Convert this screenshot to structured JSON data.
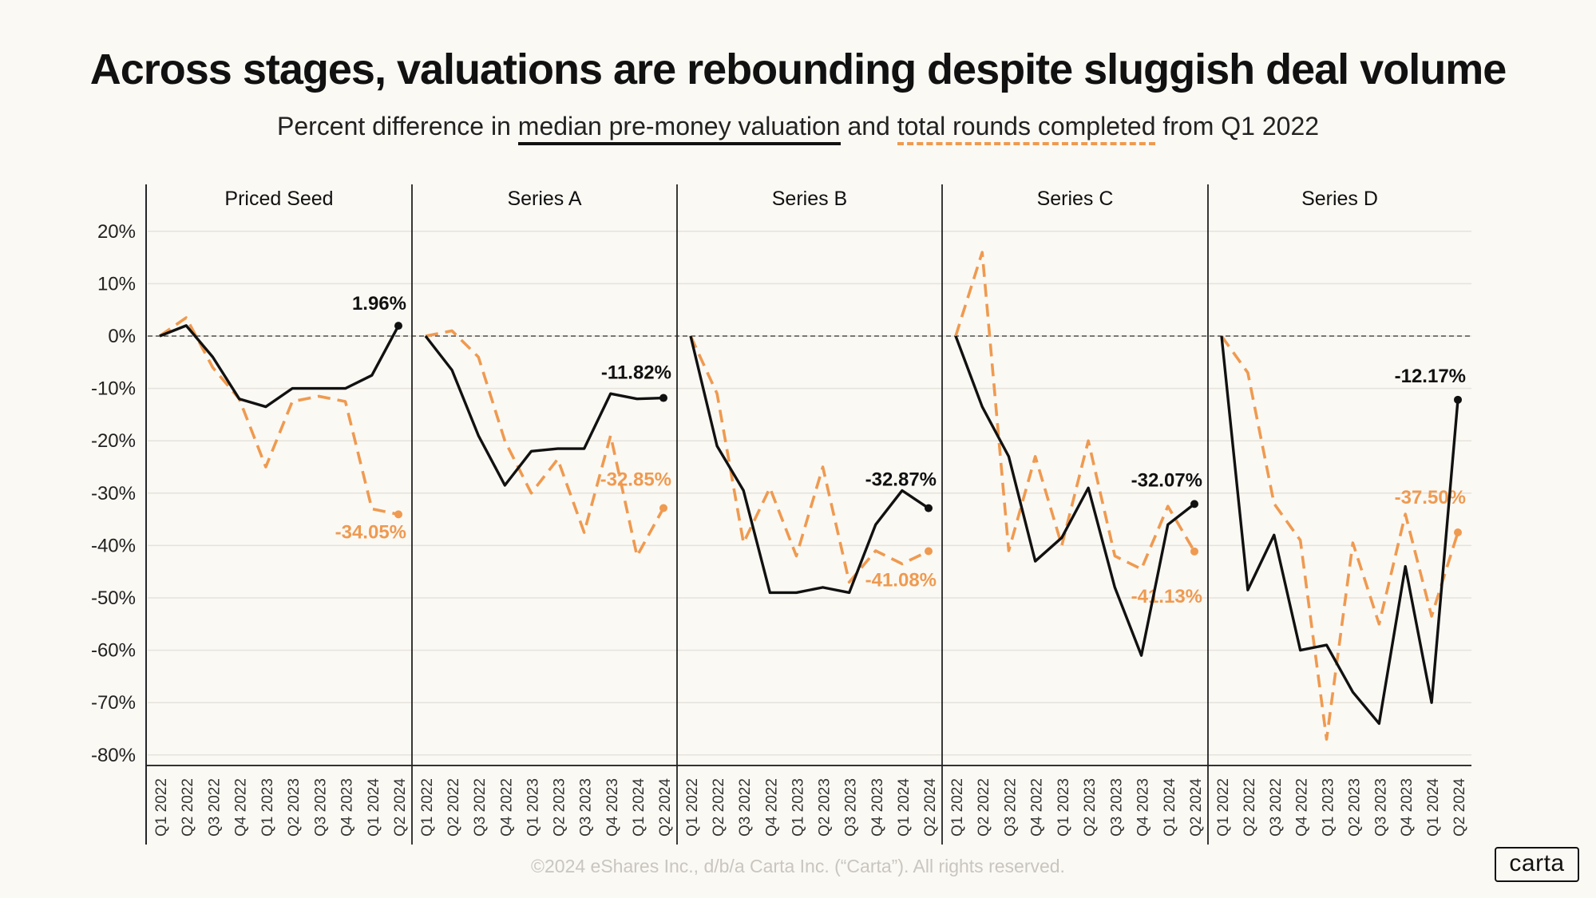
{
  "title": "Across stages, valuations are rebounding despite sluggish deal volume",
  "subtitle": {
    "prefix": "Percent difference in ",
    "series1": "median pre-money valuation",
    "middle": " and ",
    "series2": "total rounds completed",
    "suffix": " from Q1 2022"
  },
  "footer": "©2024 eShares Inc., d/b/a Carta Inc. (“Carta”). All rights reserved.",
  "logo": "carta",
  "colors": {
    "valuation": "#111111",
    "rounds": "#ef9a50",
    "background": "#fbf9f4"
  },
  "chart_data": {
    "type": "line",
    "ylim": [
      -80,
      20
    ],
    "yticks": [
      "20%",
      "10%",
      "0%",
      "-10%",
      "-20%",
      "-30%",
      "-40%",
      "-50%",
      "-60%",
      "-70%",
      "-80%"
    ],
    "grid": true,
    "reference_line": 0,
    "categories": [
      "Q1 2022",
      "Q2 2022",
      "Q3 2022",
      "Q4 2022",
      "Q1 2023",
      "Q2 2023",
      "Q3 2023",
      "Q4 2023",
      "Q1 2024",
      "Q2 2024"
    ],
    "panels": [
      {
        "name": "Priced Seed",
        "series": [
          {
            "key": "valuation",
            "style": "solid",
            "values": [
              0,
              2,
              -4,
              -12,
              -13.5,
              -10,
              -10,
              -10,
              -7.5,
              1.96
            ],
            "end_label": "1.96%"
          },
          {
            "key": "rounds",
            "style": "dashed",
            "values": [
              0,
              3.5,
              -6,
              -12,
              -25,
              -12.5,
              -11.5,
              -12.5,
              -33,
              -34.05
            ],
            "end_label": "-34.05%"
          }
        ]
      },
      {
        "name": "Series A",
        "series": [
          {
            "key": "valuation",
            "style": "solid",
            "values": [
              0,
              -6.5,
              -19,
              -28.5,
              -22,
              -21.5,
              -21.5,
              -11,
              -12,
              -11.82
            ],
            "end_label": "-11.82%"
          },
          {
            "key": "rounds",
            "style": "dashed",
            "values": [
              0,
              1,
              -4,
              -20,
              -30,
              -23.5,
              -37.5,
              -19,
              -42,
              -32.85
            ],
            "end_label": "-32.85%"
          }
        ]
      },
      {
        "name": "Series B",
        "series": [
          {
            "key": "valuation",
            "style": "solid",
            "values": [
              0,
              -21,
              -29.5,
              -49,
              -49,
              -48,
              -49,
              -36,
              -29.5,
              -32.87
            ],
            "end_label": "-32.87%"
          },
          {
            "key": "rounds",
            "style": "dashed",
            "values": [
              0,
              -11,
              -39.5,
              -29,
              -42,
              -25,
              -47,
              -41,
              -43.5,
              -41.08
            ],
            "end_label": "-41.08%"
          }
        ]
      },
      {
        "name": "Series C",
        "series": [
          {
            "key": "valuation",
            "style": "solid",
            "values": [
              0,
              -13.5,
              -23,
              -43,
              -38.5,
              -29,
              -48,
              -61,
              -36,
              -32.07
            ],
            "end_label": "-32.07%"
          },
          {
            "key": "rounds",
            "style": "dashed",
            "values": [
              0,
              16,
              -41,
              -23,
              -40,
              -20,
              -42,
              -44.5,
              -32.5,
              -41.13
            ],
            "end_label": "-41.13%"
          }
        ]
      },
      {
        "name": "Series D",
        "series": [
          {
            "key": "valuation",
            "style": "solid",
            "values": [
              0,
              -48.5,
              -38,
              -60,
              -59,
              -68,
              -74,
              -44,
              -70,
              -12.17
            ],
            "end_label": "-12.17%"
          },
          {
            "key": "rounds",
            "style": "dashed",
            "values": [
              0,
              -7,
              -32,
              -39,
              -77,
              -39.5,
              -55,
              -34,
              -53.5,
              -37.5
            ],
            "end_label": "-37.50%"
          }
        ]
      }
    ]
  }
}
